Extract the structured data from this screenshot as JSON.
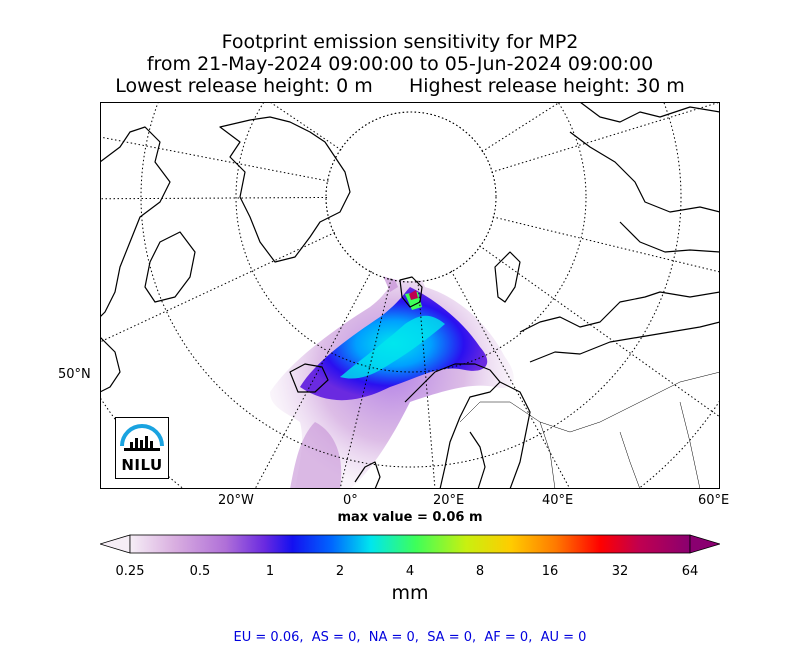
{
  "title": {
    "line1": "Footprint emission sensitivity for MP2",
    "line2": "from 21-May-2024 09:00:00 to 05-Jun-2024 09:00:00",
    "line3": "Lowest release height: 0 m      Highest release height: 30 m"
  },
  "map": {
    "projection": "north-polar-stereographic",
    "lat_label": "50°N",
    "lon_labels": [
      "20°W",
      "0°",
      "20°E",
      "40°E",
      "60°E"
    ],
    "max_value_label": "max value = 0.06 m",
    "logo_text": "NILU",
    "colors": {
      "coastline": "#000000",
      "graticule": "#000000",
      "logo_blue": "#1aa3e0"
    }
  },
  "colorbar": {
    "ticks": [
      "0.25",
      "0.5",
      "1",
      "2",
      "4",
      "8",
      "16",
      "32",
      "64"
    ],
    "units": "mm",
    "extend": "both",
    "scale": "log2",
    "colors": [
      "#f6eef6",
      "#c58fd6",
      "#8a3fd8",
      "#2a10f0",
      "#0066ff",
      "#00e6ee",
      "#3dff5a",
      "#c8f010",
      "#ffcc00",
      "#ff7a00",
      "#ff0000",
      "#c00050",
      "#8a0070"
    ]
  },
  "footer": {
    "text": "EU = 0.06,  AS = 0,  NA = 0,  SA = 0,  AF = 0,  AU = 0"
  }
}
